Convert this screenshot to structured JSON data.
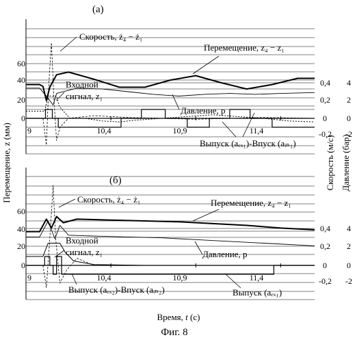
{
  "figure": {
    "caption": "Фиг. 8",
    "xlabel_prefix": "Время, ",
    "xlabel_var": "t",
    "xlabel_unit": " (с)",
    "ylabel_left": "Перемещение, z (мм)",
    "ylabel_right1": "Скорость (м/с)",
    "ylabel_right2": "Давление (бар)"
  },
  "chart_data": [
    {
      "type": "line",
      "panel_label": "(а)",
      "x_tick_labels": [
        "9",
        "10,4",
        "10,9",
        "11,4"
      ],
      "xlim": [
        9.9,
        11.6
      ],
      "left_ticks": [
        "60",
        "40",
        "20",
        "0"
      ],
      "ylim_left": [
        -20,
        80
      ],
      "right1_ticks": [
        "0,4",
        "0,2",
        "0",
        "-0,2"
      ],
      "right2_ticks": [
        "4",
        "2",
        "0",
        "-2"
      ],
      "grid": true,
      "annotations": {
        "velocity": "Скорость, ż₄ − ż₁",
        "displacement": "Перемещение, z₄ − z₁",
        "input_1": "Входной",
        "input_2": "сигнал, z₁",
        "pressure": "Давление, p",
        "valve": "Выпуск (aₑₓ₁)-Впуск (aᵢₙ₁)"
      },
      "series": [
        {
          "label": "Перемещение, z₄ − z₁",
          "x": [
            9.9,
            9.98,
            10.0,
            10.02,
            10.04,
            10.08,
            10.15,
            10.3,
            10.45,
            10.6,
            10.75,
            10.9,
            11.05,
            11.2,
            11.35,
            11.5,
            11.6
          ],
          "y": [
            38,
            38,
            36,
            20,
            35,
            49,
            52,
            44,
            35,
            35,
            43,
            48,
            40,
            33,
            38,
            45,
            45
          ]
        },
        {
          "label": "Давление, p",
          "x": [
            9.9,
            9.98,
            10.02,
            10.06,
            10.08,
            10.2,
            10.35,
            10.5,
            10.65,
            10.8,
            10.95,
            11.1,
            11.25,
            11.4,
            11.6
          ],
          "y": [
            34,
            34,
            25,
            15,
            28,
            34,
            33,
            30,
            27,
            25,
            27,
            28,
            27,
            28,
            29
          ]
        },
        {
          "label": "Входной сигнал, z₁",
          "x": [
            9.9,
            10.01,
            10.03,
            10.08,
            10.095,
            10.12,
            10.16,
            10.25,
            10.35,
            10.45,
            10.55,
            10.7,
            10.85,
            11.0,
            11.15,
            11.3,
            11.45,
            11.6
          ],
          "y": [
            8,
            8,
            25,
            25,
            14,
            8,
            0,
            0,
            -3,
            -4,
            -2,
            0,
            2,
            4,
            2,
            0,
            -3,
            -4
          ]
        },
        {
          "label": "Скорость, ż₄ − ż₁",
          "x": [
            9.9,
            10.0,
            10.02,
            10.035,
            10.05,
            10.065,
            10.08,
            10.1,
            10.15,
            10.3,
            10.5,
            10.7,
            10.9,
            11.1,
            11.3,
            11.6
          ],
          "y": [
            0,
            0,
            -30,
            40,
            85,
            20,
            -25,
            -10,
            0,
            3,
            1,
            0,
            -1,
            0,
            1,
            0
          ]
        },
        {
          "label": "Выпуск (aₑₓ₁)-Впуск (aᵢₙ₁)",
          "x": [
            9.9,
            10.015,
            10.015,
            10.055,
            10.055,
            10.09,
            10.09,
            10.46,
            10.46,
            10.58,
            10.58,
            10.72,
            10.72,
            10.85,
            10.85,
            10.98,
            10.98,
            11.1,
            11.1,
            11.22,
            11.22,
            11.35,
            11.35,
            11.6
          ],
          "y": [
            0,
            0,
            10,
            10,
            0,
            0,
            -10,
            -10,
            0,
            0,
            10,
            10,
            0,
            0,
            -10,
            -10,
            0,
            0,
            10,
            10,
            0,
            0,
            -10,
            -10
          ]
        }
      ]
    },
    {
      "type": "line",
      "panel_label": "(б)",
      "x_tick_labels": [
        "9",
        "10,4",
        "10,9",
        "11,4"
      ],
      "xlim": [
        9.9,
        11.6
      ],
      "left_ticks": [
        "60",
        "40",
        "20",
        "0"
      ],
      "ylim_left": [
        -20,
        80
      ],
      "right1_ticks": [
        "0,4",
        "0,2",
        "0",
        "-0,2"
      ],
      "right2_ticks": [
        "4",
        "2",
        "0",
        "-2"
      ],
      "grid": true,
      "annotations": {
        "velocity": "Скорость, ż₄ − ż₁",
        "displacement": "Перемещение, z₄ − z₁",
        "input_1": "Входной",
        "input_2": "сигнал, z₁",
        "pressure": "Давление, p",
        "valve1": "Выпуск (aₑₓ₂)-Впуск (aᵢₙ₂)",
        "valve2": "Выпуск (aₑₓ₁)"
      },
      "series": [
        {
          "label": "Перемещение, z₄ − z₁",
          "x": [
            9.9,
            9.98,
            10.02,
            10.05,
            10.08,
            10.12,
            10.2,
            10.4,
            10.6,
            10.8,
            11.0,
            11.2,
            11.4,
            11.6
          ],
          "y": [
            38,
            38,
            52,
            42,
            55,
            48,
            52,
            51,
            50,
            49,
            47,
            45,
            42,
            40
          ]
        },
        {
          "label": "Давление, p",
          "x": [
            9.9,
            9.98,
            10.03,
            10.07,
            10.1,
            10.15,
            10.3,
            10.5,
            10.7,
            10.9,
            11.1,
            11.3,
            11.6
          ],
          "y": [
            32,
            32,
            50,
            30,
            45,
            34,
            33,
            32,
            31,
            29,
            27,
            25,
            22
          ]
        },
        {
          "label": "Входной сигнал, z₁",
          "x": [
            9.9,
            10.0,
            10.03,
            10.1,
            10.13,
            10.18,
            10.3,
            10.6,
            11.0,
            11.6
          ],
          "y": [
            10,
            10,
            25,
            25,
            15,
            5,
            1,
            0,
            0,
            0
          ]
        },
        {
          "label": "Скорость, ż₄ − ż₁",
          "x": [
            9.9,
            10.0,
            10.02,
            10.04,
            10.06,
            10.075,
            10.1,
            10.14,
            10.2,
            10.3,
            10.6,
            11.0,
            11.6
          ],
          "y": [
            0,
            0,
            -25,
            30,
            90,
            30,
            -20,
            -5,
            8,
            0,
            0,
            0,
            0
          ]
        },
        {
          "label": "Выпуск (aₑₓ₂)-Впуск (aᵢₙ₂)",
          "x": [
            9.9,
            10.01,
            10.01,
            10.04,
            10.04,
            10.06,
            10.06,
            10.08,
            10.08,
            10.11,
            10.11,
            11.36,
            11.36,
            11.6
          ],
          "y": [
            0,
            0,
            10,
            10,
            0,
            0,
            -10,
            -10,
            10,
            10,
            -10,
            -10,
            0,
            0
          ]
        }
      ]
    }
  ]
}
